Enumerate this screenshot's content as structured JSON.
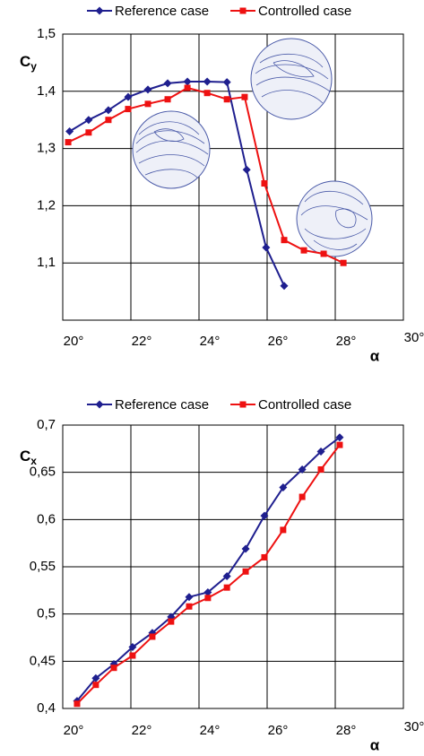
{
  "chart_data": [
    {
      "type": "line",
      "ylabel": "Cy",
      "xlabel": "α",
      "xlim": [
        20,
        30
      ],
      "xticks": [
        {
          "value": 20,
          "label": "20°"
        },
        {
          "value": 22,
          "label": "22°"
        },
        {
          "value": 24,
          "label": "24°"
        },
        {
          "value": 26,
          "label": "26°"
        },
        {
          "value": 28,
          "label": "28°"
        },
        {
          "value": 30,
          "label": "30°"
        }
      ],
      "ylim": [
        1.0,
        1.5
      ],
      "yticks": [
        {
          "value": 1.1,
          "label": "1,1"
        },
        {
          "value": 1.2,
          "label": "1,2"
        },
        {
          "value": 1.3,
          "label": "1,3"
        },
        {
          "value": 1.4,
          "label": "1,4"
        },
        {
          "value": 1.5,
          "label": "1,5"
        }
      ],
      "grid": true,
      "series": [
        {
          "name": "Reference case",
          "color": "#1f1f8f",
          "marker": "diamond",
          "x": [
            20.2,
            20.76,
            21.34,
            21.92,
            22.5,
            23.08,
            23.66,
            24.24,
            24.82,
            25.4,
            25.97,
            26.5
          ],
          "values": [
            1.33,
            1.35,
            1.367,
            1.39,
            1.403,
            1.414,
            1.417,
            1.417,
            1.416,
            1.263,
            1.127,
            1.06
          ]
        },
        {
          "name": "Controlled case",
          "color": "#ee1111",
          "marker": "square",
          "x": [
            20.16,
            20.76,
            21.34,
            21.92,
            22.5,
            23.08,
            23.66,
            24.24,
            24.82,
            25.34,
            25.92,
            26.5,
            27.08,
            27.66,
            28.24
          ],
          "values": [
            1.311,
            1.328,
            1.35,
            1.369,
            1.378,
            1.386,
            1.406,
            1.397,
            1.386,
            1.39,
            1.239,
            1.14,
            1.122,
            1.116,
            1.1
          ]
        }
      ]
    },
    {
      "type": "line",
      "ylabel": "Cx",
      "xlabel": "α",
      "xlim": [
        20,
        30
      ],
      "xticks": [
        {
          "value": 20,
          "label": "20°"
        },
        {
          "value": 22,
          "label": "22°"
        },
        {
          "value": 24,
          "label": "24°"
        },
        {
          "value": 26,
          "label": "26°"
        },
        {
          "value": 28,
          "label": "28°"
        },
        {
          "value": 30,
          "label": "30°"
        }
      ],
      "ylim": [
        0.4,
        0.7
      ],
      "yticks": [
        {
          "value": 0.4,
          "label": "0,4"
        },
        {
          "value": 0.45,
          "label": "0,45"
        },
        {
          "value": 0.5,
          "label": "0,5"
        },
        {
          "value": 0.55,
          "label": "0,55"
        },
        {
          "value": 0.6,
          "label": "0,6"
        },
        {
          "value": 0.65,
          "label": "0,65"
        },
        {
          "value": 0.7,
          "label": "0,7"
        }
      ],
      "grid": true,
      "series": [
        {
          "name": "Reference case",
          "color": "#1f1f8f",
          "marker": "diamond",
          "x": [
            20.42,
            20.97,
            21.5,
            22.05,
            22.63,
            23.18,
            23.71,
            24.26,
            24.82,
            25.37,
            25.92,
            26.47,
            27.03,
            27.58,
            28.13
          ],
          "values": [
            0.408,
            0.432,
            0.447,
            0.465,
            0.48,
            0.497,
            0.518,
            0.523,
            0.54,
            0.569,
            0.604,
            0.634,
            0.653,
            0.672,
            0.687
          ]
        },
        {
          "name": "Controlled case",
          "color": "#ee1111",
          "marker": "square",
          "x": [
            20.42,
            20.97,
            21.5,
            22.05,
            22.63,
            23.18,
            23.71,
            24.26,
            24.82,
            25.37,
            25.92,
            26.47,
            27.03,
            27.58,
            28.13
          ],
          "values": [
            0.405,
            0.425,
            0.443,
            0.456,
            0.476,
            0.492,
            0.508,
            0.517,
            0.528,
            0.545,
            0.56,
            0.589,
            0.624,
            0.653,
            0.679
          ]
        }
      ]
    }
  ]
}
